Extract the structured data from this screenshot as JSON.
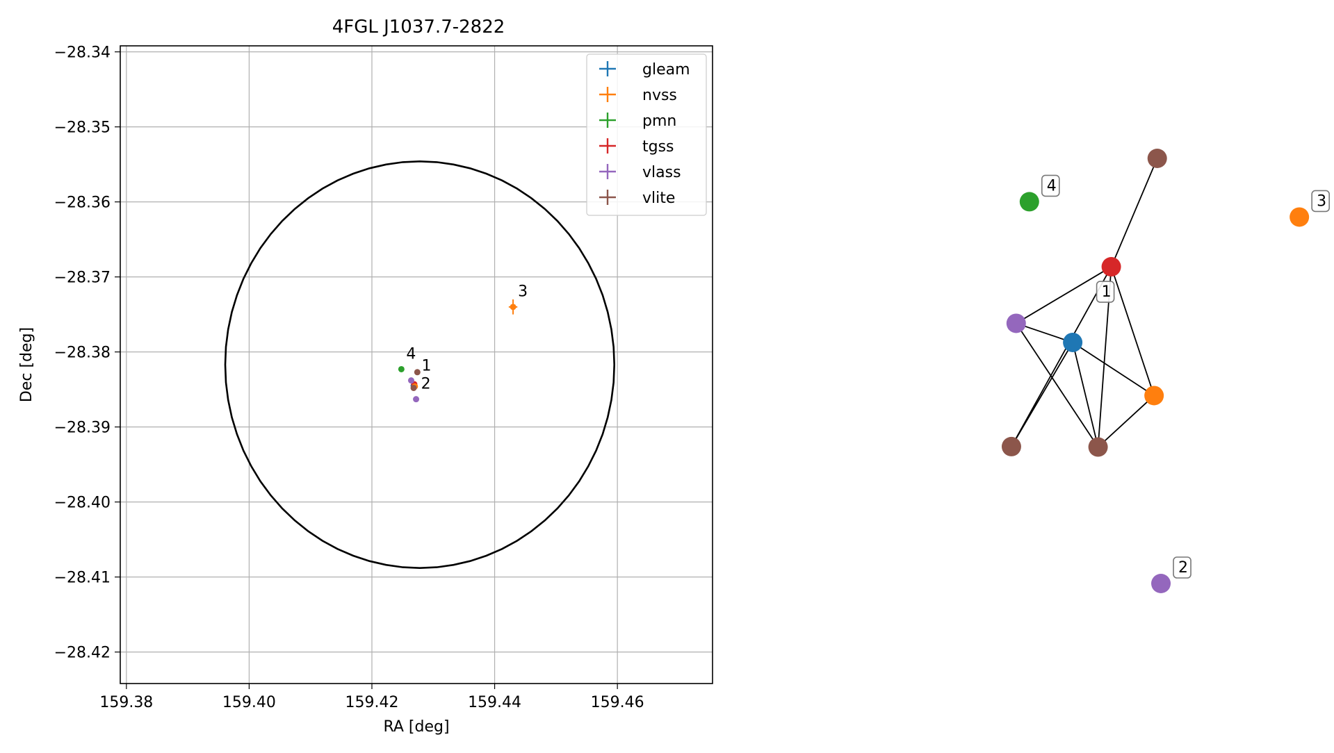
{
  "chart_data": [
    {
      "type": "scatter",
      "title": "4FGL J1037.7-2822",
      "xlabel": "RA [deg]",
      "ylabel": "Dec [deg]",
      "xlim": [
        159.379,
        159.4755
      ],
      "ylim": [
        -28.4242,
        -28.3392
      ],
      "xticks": [
        159.38,
        159.4,
        159.42,
        159.44,
        159.46
      ],
      "xtick_labels": [
        "159.38",
        "159.40",
        "159.42",
        "159.44",
        "159.46"
      ],
      "yticks": [
        -28.34,
        -28.35,
        -28.36,
        -28.37,
        -28.38,
        -28.39,
        -28.4,
        -28.41,
        -28.42
      ],
      "ytick_labels": [
        "−28.34",
        "−28.35",
        "−28.36",
        "−28.37",
        "−28.38",
        "−28.39",
        "−28.40",
        "−28.41",
        "−28.42"
      ],
      "grid": true,
      "legend_position": "top-right",
      "legend": [
        {
          "label": "gleam",
          "color": "#1f77b4"
        },
        {
          "label": "nvss",
          "color": "#ff7f0e"
        },
        {
          "label": "pmn",
          "color": "#2ca02c"
        },
        {
          "label": "tgss",
          "color": "#d62728"
        },
        {
          "label": "vlass",
          "color": "#9467bd"
        },
        {
          "label": "vlite",
          "color": "#8c564b"
        }
      ],
      "circle": {
        "center": [
          159.4278,
          -28.3817
        ],
        "ra_radius": 0.0317,
        "dec_radius": 0.0271,
        "color": "#000000"
      },
      "points": [
        {
          "series": "gleam",
          "color": "#1f77b4",
          "x": 159.4268,
          "y": -28.3845,
          "xerr": 0.0003,
          "yerr": 0.0003
        },
        {
          "series": "tgss",
          "color": "#d62728",
          "x": 159.4269,
          "y": -28.3843,
          "xerr": 0.0002,
          "yerr": 0.0002
        },
        {
          "series": "nvss",
          "color": "#ff7f0e",
          "x": 159.443,
          "y": -28.374,
          "xerr": 0.0007,
          "yerr": 0.001
        },
        {
          "series": "nvss",
          "color": "#ff7f0e",
          "x": 159.427,
          "y": -28.3846,
          "xerr": 0.0004,
          "yerr": 0.0004
        },
        {
          "series": "pmn",
          "color": "#2ca02c",
          "x": 159.4248,
          "y": -28.3823,
          "xerr": 0,
          "yerr": 0
        },
        {
          "series": "vlass",
          "color": "#9467bd",
          "x": 159.4264,
          "y": -28.3838,
          "xerr": 0,
          "yerr": 0
        },
        {
          "series": "vlass",
          "color": "#9467bd",
          "x": 159.4272,
          "y": -28.3863,
          "xerr": 0,
          "yerr": 0
        },
        {
          "series": "vlite",
          "color": "#8c564b",
          "x": 159.4274,
          "y": -28.3827,
          "xerr": 0,
          "yerr": 0
        },
        {
          "series": "vlite",
          "color": "#8c564b",
          "x": 159.4268,
          "y": -28.3848,
          "xerr": 0,
          "yerr": 0
        }
      ],
      "annotations": [
        {
          "text": "1",
          "x": 159.4281,
          "y": -28.3825
        },
        {
          "text": "2",
          "x": 159.428,
          "y": -28.3849
        },
        {
          "text": "3",
          "x": 159.4438,
          "y": -28.3726
        },
        {
          "text": "4",
          "x": 159.4256,
          "y": -28.3809
        }
      ]
    },
    {
      "type": "network",
      "nodes": [
        {
          "id": "tgss",
          "color": "#d62728",
          "x": 0.61,
          "y": 0.745
        },
        {
          "id": "gleam",
          "color": "#1f77b4",
          "x": 0.537,
          "y": 0.567
        },
        {
          "id": "vlite-a",
          "color": "#8c564b",
          "x": 0.697,
          "y": 1.0
        },
        {
          "id": "vlass-a",
          "color": "#9467bd",
          "x": 0.43,
          "y": 0.612
        },
        {
          "id": "nvss-a",
          "color": "#ff7f0e",
          "x": 0.691,
          "y": 0.442
        },
        {
          "id": "vlite-b",
          "color": "#8c564b",
          "x": 0.421,
          "y": 0.322
        },
        {
          "id": "vlite-c",
          "color": "#8c564b",
          "x": 0.585,
          "y": 0.321
        },
        {
          "id": "pmn",
          "color": "#2ca02c",
          "x": 0.455,
          "y": 0.898,
          "label": "4"
        },
        {
          "id": "nvss-b",
          "color": "#ff7f0e",
          "x": 0.966,
          "y": 0.862,
          "label": "3"
        },
        {
          "id": "vlass-b",
          "color": "#9467bd",
          "x": 0.704,
          "y": 0.0,
          "label": "2"
        }
      ],
      "edges": [
        [
          "tgss",
          "vlite-a"
        ],
        [
          "tgss",
          "vlass-a"
        ],
        [
          "tgss",
          "nvss-a"
        ],
        [
          "tgss",
          "vlite-b"
        ],
        [
          "tgss",
          "vlite-c"
        ],
        [
          "gleam",
          "vlass-a"
        ],
        [
          "gleam",
          "nvss-a"
        ],
        [
          "gleam",
          "vlite-b"
        ],
        [
          "gleam",
          "vlite-c"
        ],
        [
          "vlass-a",
          "vlite-c"
        ],
        [
          "nvss-a",
          "vlite-c"
        ]
      ],
      "group_labels": [
        {
          "text": "1",
          "node": "tgss"
        }
      ]
    }
  ]
}
